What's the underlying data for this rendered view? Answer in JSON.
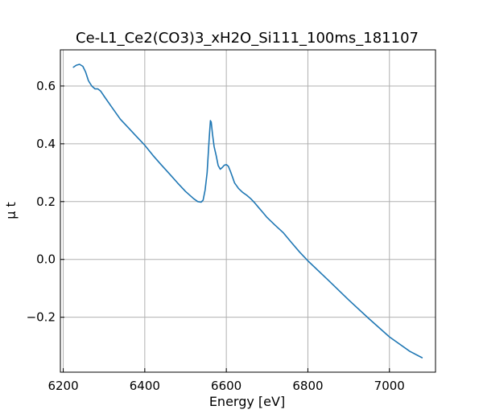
{
  "chart_data": {
    "type": "line",
    "title": "Ce-L1_Ce2(CO3)3_xH2O_Si111_100ms_181107",
    "xlabel": "Energy [eV]",
    "ylabel": "μ t",
    "xlim": [
      6193,
      7113
    ],
    "ylim": [
      -0.39,
      0.725
    ],
    "grid": true,
    "x_ticks": [
      6200,
      6400,
      6600,
      6800,
      7000
    ],
    "y_ticks": [
      -0.2,
      0.0,
      0.2,
      0.4,
      0.6
    ],
    "x_tick_labels": [
      "6200",
      "6400",
      "6600",
      "6800",
      "7000"
    ],
    "y_tick_labels": [
      "−0.2",
      "0.0",
      "0.2",
      "0.4",
      "0.6"
    ],
    "colors": {
      "line": "#1f77b4",
      "grid": "#b0b0b0",
      "axes": "#000000"
    },
    "series": [
      {
        "x": [
          6225,
          6232,
          6240,
          6248,
          6255,
          6262,
          6270,
          6278,
          6285,
          6292,
          6300,
          6320,
          6340,
          6360,
          6380,
          6400,
          6420,
          6440,
          6460,
          6480,
          6500,
          6520,
          6530,
          6538,
          6543,
          6548,
          6553,
          6558,
          6561,
          6563,
          6566,
          6570,
          6575,
          6580,
          6585,
          6590,
          6595,
          6600,
          6605,
          6610,
          6615,
          6620,
          6630,
          6640,
          6650,
          6660,
          6670,
          6680,
          6690,
          6700,
          6720,
          6740,
          6760,
          6780,
          6800,
          6850,
          6900,
          6950,
          7000,
          7050,
          7080
        ],
        "y": [
          0.665,
          0.672,
          0.675,
          0.668,
          0.648,
          0.618,
          0.6,
          0.59,
          0.59,
          0.582,
          0.565,
          0.525,
          0.485,
          0.455,
          0.425,
          0.395,
          0.36,
          0.328,
          0.297,
          0.265,
          0.235,
          0.21,
          0.2,
          0.198,
          0.205,
          0.24,
          0.3,
          0.42,
          0.48,
          0.475,
          0.435,
          0.39,
          0.36,
          0.325,
          0.312,
          0.318,
          0.326,
          0.328,
          0.322,
          0.305,
          0.285,
          0.265,
          0.245,
          0.232,
          0.222,
          0.21,
          0.195,
          0.178,
          0.162,
          0.145,
          0.118,
          0.092,
          0.058,
          0.025,
          -0.005,
          -0.072,
          -0.14,
          -0.205,
          -0.268,
          -0.318,
          -0.34
        ]
      }
    ]
  }
}
